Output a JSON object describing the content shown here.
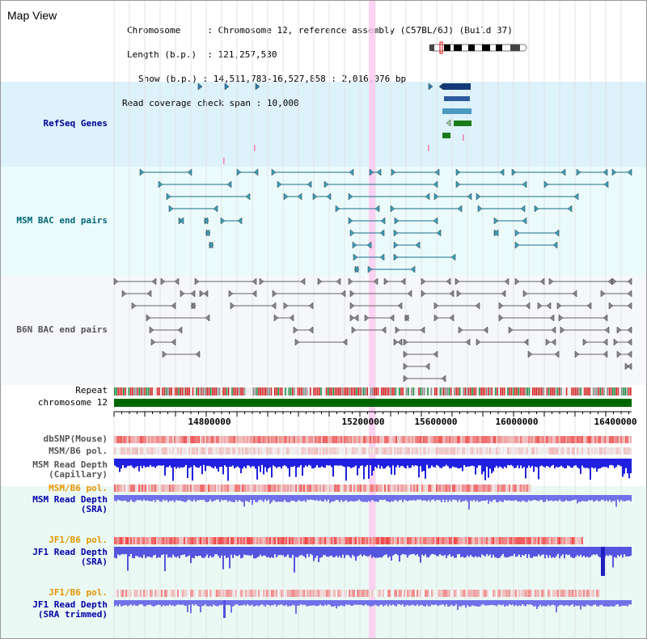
{
  "title": "Map View",
  "info": {
    "chromosome_label": "Chromosome",
    "chromosome_value": "Chromosome 12, reference assembly (C57BL/6J) (Build 37)",
    "length_label": "Length (b.p.)",
    "length_value": "121,257,530",
    "show_label": "Show (b.p.)",
    "show_value": "14,511,783-16,527,858 : 2,016,076 bp",
    "coverage_label": "Read coverage check span",
    "coverage_value": "10,000"
  },
  "tracks": {
    "refseq": "RefSeq Genes",
    "msm_bac": "MSM BAC end pairs",
    "b6n_bac": "B6N BAC end pairs",
    "repeat": "Repeat",
    "chromosome": "chromosome 12",
    "dbsnp": "dbSNP(Mouse)",
    "msm_b6_pol_1": "MSM/B6 pol.",
    "msm_read_depth_cap_1": "MSM Read Depth",
    "msm_read_depth_cap_2": "(Capillary)",
    "msm_b6_pol_2": "MSM/B6 pol.",
    "msm_read_depth_sra_1": "MSM Read Depth",
    "msm_read_depth_sra_2": "(SRA)",
    "jf1_b6_pol_1": "JF1/B6 pol.",
    "jf1_read_depth_sra_1": "JF1 Read Depth",
    "jf1_read_depth_sra_2": "(SRA)",
    "jf1_b6_pol_2": "JF1/B6 pol.",
    "jf1_read_depth_trim_1": "JF1 Read Depth",
    "jf1_read_depth_trim_2": "(SRA trimmed)"
  },
  "axis": {
    "ticks": [
      "14800000",
      "15200000",
      "15600000",
      "16000000",
      "16400000"
    ]
  },
  "colors": {
    "refseq_band": "#ddf2fb",
    "bac_band": "#ebfbfb",
    "b6n_band": "#f6f7fb",
    "chromosome": "#006600",
    "highlight": "#ffc8f0"
  }
}
